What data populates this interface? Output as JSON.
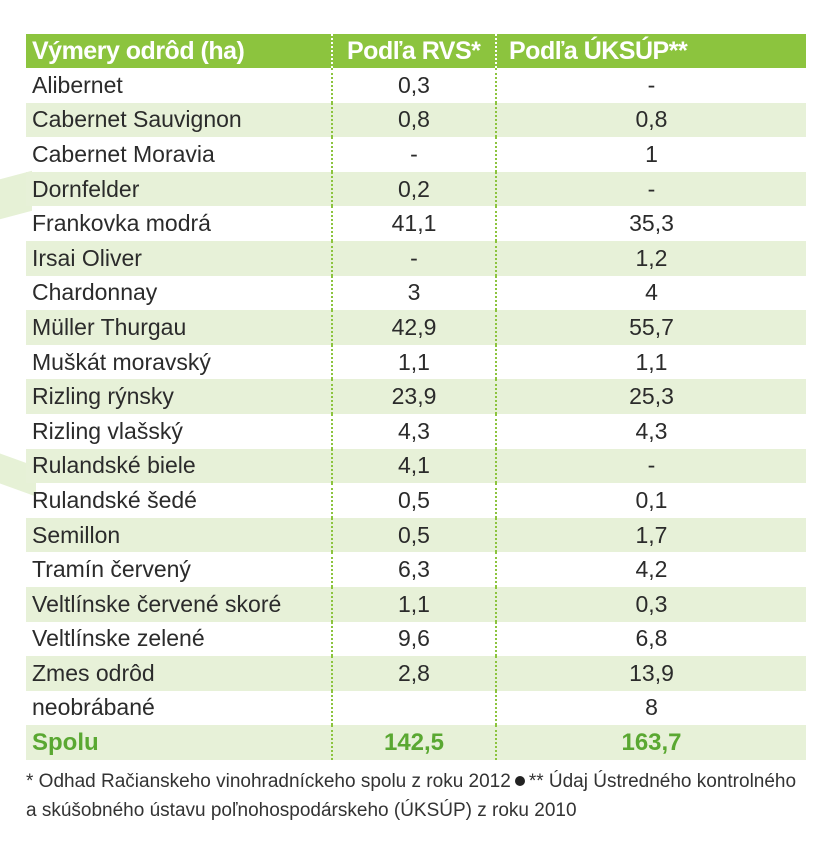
{
  "table": {
    "headers": [
      "Výmery odrôd (ha)",
      "Podľa RVS*",
      "Podľa ÚKSÚP**"
    ],
    "rows": [
      [
        "Alibernet",
        "0,3",
        "-"
      ],
      [
        "Cabernet Sauvignon",
        "0,8",
        "0,8"
      ],
      [
        "Cabernet Moravia",
        "-",
        "1"
      ],
      [
        "Dornfelder",
        "0,2",
        "-"
      ],
      [
        "Frankovka modrá",
        "41,1",
        "35,3"
      ],
      [
        "Irsai Oliver",
        "-",
        "1,2"
      ],
      [
        "Chardonnay",
        "3",
        "4"
      ],
      [
        "Müller Thurgau",
        "42,9",
        "55,7"
      ],
      [
        "Muškát moravský",
        "1,1",
        "1,1"
      ],
      [
        "Rizling rýnsky",
        "23,9",
        "25,3"
      ],
      [
        "Rizling vlašský",
        "4,3",
        "4,3"
      ],
      [
        "Rulandské biele",
        "4,1",
        "-"
      ],
      [
        "Rulandské šedé",
        "0,5",
        "0,1"
      ],
      [
        "Semillon",
        "0,5",
        "1,7"
      ],
      [
        "Tramín červený",
        "6,3",
        "4,2"
      ],
      [
        "Veltlínske červené skoré",
        "1,1",
        "0,3"
      ],
      [
        "Veltlínske zelené",
        "9,6",
        "6,8"
      ],
      [
        "Zmes odrôd",
        "2,8",
        "13,9"
      ],
      [
        "neobrábané",
        "",
        "8"
      ]
    ],
    "total": [
      "Spolu",
      "142,5",
      "163,7"
    ]
  },
  "footnote": {
    "part1": "* Odhad Račianskeho vinohradníckeho spolu z roku 2012",
    "part2": "** Údaj Ústredného kontrolného a skúšobného ústavu poľnohospodárskeho (ÚKSÚP) z roku 2010"
  },
  "colors": {
    "header_bg": "#8cc43e",
    "stripe_bg": "#e7f1d8",
    "total_text": "#5aa832"
  }
}
